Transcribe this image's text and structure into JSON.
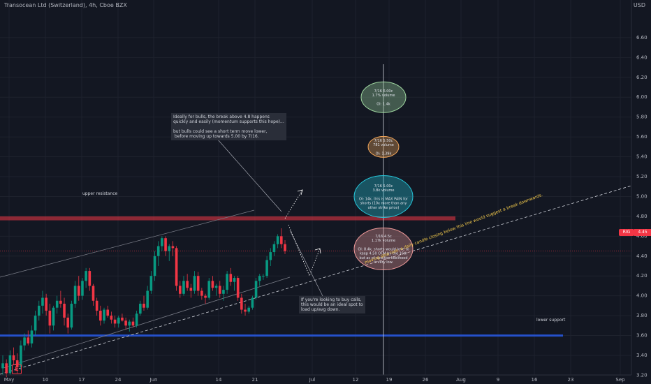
{
  "header": {
    "title": "Transocean Ltd (Switzerland), 4h, Cboe BZX",
    "currency": "USD"
  },
  "price_tag": {
    "symbol": "RIG",
    "value": "4.45"
  },
  "logo_letter": "E",
  "chart_data": {
    "type": "candlestick",
    "title": "Transocean Ltd (Switzerland), 4h, Cboe BZX",
    "y_ticks": [
      "6.60",
      "6.40",
      "6.20",
      "6.00",
      "5.80",
      "5.60",
      "5.40",
      "5.20",
      "5.00",
      "4.80",
      "4.60",
      "4.40",
      "4.20",
      "4.00",
      "3.80",
      "3.60",
      "3.40",
      "3.20"
    ],
    "x_ticks": [
      "May",
      "10",
      "17",
      "24",
      "Jun",
      "14",
      "21",
      "Jul",
      "12",
      "19",
      "26",
      "Aug",
      "9",
      "16",
      "23",
      "Sep"
    ],
    "ylim": [
      3.1,
      6.7
    ],
    "candles": [
      [
        3.27,
        3.4,
        3.2,
        3.32
      ],
      [
        3.32,
        3.36,
        3.18,
        3.22
      ],
      [
        3.22,
        3.45,
        3.2,
        3.4
      ],
      [
        3.4,
        3.48,
        3.3,
        3.35
      ],
      [
        3.35,
        3.42,
        3.22,
        3.28
      ],
      [
        3.28,
        3.55,
        3.25,
        3.5
      ],
      [
        3.5,
        3.62,
        3.45,
        3.58
      ],
      [
        3.58,
        3.65,
        3.5,
        3.52
      ],
      [
        3.52,
        3.7,
        3.48,
        3.65
      ],
      [
        3.65,
        3.85,
        3.6,
        3.8
      ],
      [
        3.8,
        3.95,
        3.75,
        3.9
      ],
      [
        3.9,
        4.05,
        3.82,
        3.98
      ],
      [
        3.98,
        4.02,
        3.8,
        3.85
      ],
      [
        3.85,
        3.92,
        3.62,
        3.7
      ],
      [
        3.7,
        3.9,
        3.65,
        3.88
      ],
      [
        3.88,
        4.0,
        3.82,
        3.95
      ],
      [
        3.95,
        4.05,
        3.88,
        3.92
      ],
      [
        3.92,
        3.98,
        3.7,
        3.78
      ],
      [
        3.78,
        3.82,
        3.62,
        3.68
      ],
      [
        3.68,
        3.95,
        3.66,
        3.92
      ],
      [
        3.92,
        4.15,
        3.88,
        4.1
      ],
      [
        4.1,
        4.2,
        3.95,
        4.0
      ],
      [
        4.0,
        4.18,
        3.96,
        4.15
      ],
      [
        4.15,
        4.28,
        4.08,
        4.25
      ],
      [
        4.25,
        4.28,
        4.05,
        4.1
      ],
      [
        4.1,
        4.12,
        3.9,
        3.95
      ],
      [
        3.95,
        3.98,
        3.8,
        3.85
      ],
      [
        3.85,
        3.9,
        3.7,
        3.75
      ],
      [
        3.75,
        3.88,
        3.72,
        3.86
      ],
      [
        3.86,
        3.9,
        3.78,
        3.8
      ],
      [
        3.8,
        3.84,
        3.72,
        3.76
      ],
      [
        3.76,
        3.8,
        3.68,
        3.72
      ],
      [
        3.72,
        3.8,
        3.68,
        3.78
      ],
      [
        3.78,
        3.82,
        3.74,
        3.75
      ],
      [
        3.75,
        3.78,
        3.66,
        3.7
      ],
      [
        3.7,
        3.76,
        3.64,
        3.74
      ],
      [
        3.74,
        3.78,
        3.68,
        3.7
      ],
      [
        3.7,
        3.85,
        3.68,
        3.82
      ],
      [
        3.82,
        3.95,
        3.8,
        3.92
      ],
      [
        3.92,
        4.0,
        3.85,
        3.88
      ],
      [
        3.88,
        4.1,
        3.86,
        4.05
      ],
      [
        4.05,
        4.25,
        4.02,
        4.2
      ],
      [
        4.2,
        4.45,
        4.15,
        4.4
      ],
      [
        4.4,
        4.55,
        4.3,
        4.5
      ],
      [
        4.5,
        4.6,
        4.45,
        4.58
      ],
      [
        4.58,
        4.6,
        4.4,
        4.45
      ],
      [
        4.45,
        4.52,
        4.35,
        4.5
      ],
      [
        4.5,
        4.55,
        4.4,
        4.48
      ],
      [
        4.48,
        4.5,
        4.05,
        4.1
      ],
      [
        4.1,
        4.15,
        3.98,
        4.02
      ],
      [
        4.02,
        4.2,
        4.0,
        4.15
      ],
      [
        4.15,
        4.22,
        4.05,
        4.08
      ],
      [
        4.08,
        4.12,
        3.98,
        4.05
      ],
      [
        4.05,
        4.25,
        4.02,
        4.2
      ],
      [
        4.2,
        4.24,
        4.0,
        4.05
      ],
      [
        4.05,
        4.08,
        3.96,
        4.0
      ],
      [
        4.0,
        4.02,
        3.92,
        3.98
      ],
      [
        3.98,
        4.18,
        3.96,
        4.15
      ],
      [
        4.15,
        4.2,
        4.05,
        4.08
      ],
      [
        4.08,
        4.12,
        4.0,
        4.1
      ],
      [
        4.1,
        4.15,
        3.98,
        4.02
      ],
      [
        4.02,
        4.1,
        3.95,
        4.06
      ],
      [
        4.06,
        4.25,
        4.02,
        4.22
      ],
      [
        4.22,
        4.28,
        4.1,
        4.14
      ],
      [
        4.14,
        4.2,
        4.05,
        4.18
      ],
      [
        4.18,
        4.2,
        3.95,
        3.98
      ],
      [
        3.98,
        4.02,
        3.82,
        3.86
      ],
      [
        3.86,
        3.92,
        3.8,
        3.84
      ],
      [
        3.84,
        3.9,
        3.82,
        3.88
      ],
      [
        3.88,
        4.0,
        3.86,
        3.98
      ],
      [
        3.98,
        4.18,
        3.96,
        4.15
      ],
      [
        4.15,
        4.22,
        4.1,
        4.2
      ],
      [
        4.2,
        4.22,
        4.16,
        4.2
      ],
      [
        4.2,
        4.4,
        4.18,
        4.36
      ],
      [
        4.36,
        4.48,
        4.3,
        4.44
      ],
      [
        4.44,
        4.55,
        4.4,
        4.52
      ],
      [
        4.52,
        4.62,
        4.48,
        4.6
      ],
      [
        4.6,
        4.68,
        4.48,
        4.52
      ],
      [
        4.52,
        4.56,
        4.42,
        4.45
      ]
    ],
    "levels": [
      {
        "label": "upper resistance",
        "low": 4.76,
        "high": 4.8,
        "color": "#f23645"
      },
      {
        "label": "lower support",
        "low": 3.59,
        "high": 3.61,
        "color": "#2962ff"
      }
    ],
    "last_price": 4.45,
    "annotations": [
      {
        "id": "bulls-note",
        "lines": [
          "Ideally for bulls, the break above 4.8 happens",
          "quickly and easily (momentum supports this hope)...",
          "",
          "but bulls could see a short term move lower,",
          " before moving up towards 5.00 by 7/16."
        ]
      },
      {
        "id": "calls-note",
        "lines": [
          "If you're looking to buy calls,",
          "this would be an ideal spot to",
          "load up/avg down."
        ]
      },
      {
        "id": "stop-loss-note",
        "lines": [
          "moving stop loss, a daily candle closing below this line would suggest a break downwards."
        ]
      }
    ],
    "option_bubbles": [
      {
        "strike": 6.0,
        "color": "#9fd6a0",
        "lines": [
          "7/16 6.00c",
          "1.7% volume",
          "",
          "OI: 1.4k"
        ]
      },
      {
        "strike": 5.5,
        "color": "#f2a65a",
        "lines": [
          "7/16 5.50c",
          "781 volume",
          "",
          "OI: 1.39k"
        ]
      },
      {
        "strike": 5.0,
        "color": "#26c6da",
        "lines": [
          "7/16 5.00c",
          "3.8k volume",
          "",
          "OI: 14k, this is MAX PAIN for",
          "shorts (10x more than any",
          "other strike price)"
        ]
      },
      {
        "strike": 4.5,
        "color": "#ef9a9a",
        "lines": [
          "7/16 4.5c",
          "1.17k volume",
          "",
          "OI: 8.4k, shorts would love to",
          "keep 4.50 OTM by the 16th",
          "but as of now the likelihood",
          "is very low."
        ]
      }
    ]
  }
}
